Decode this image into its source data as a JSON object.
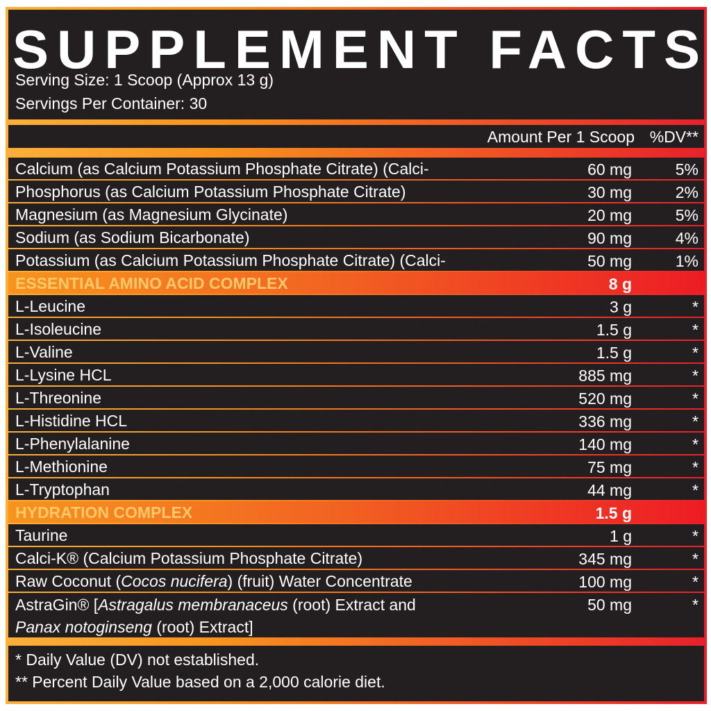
{
  "header": {
    "title": "SUPPLEMENT FACTS",
    "serving_size": "Serving Size: 1 Scoop (Approx 13 g)",
    "servings_per_container": "Servings Per Container: 30"
  },
  "columns": {
    "amount": "Amount Per 1 Scoop",
    "dv": "%DV**"
  },
  "rows": [
    {
      "name": [
        {
          "text": "Calcium (as Calcium Potassium Phosphate Citrate) (Calci-K®)"
        }
      ],
      "amount": "60 mg",
      "dv": "5%"
    },
    {
      "name": [
        {
          "text": "Phosphorus (as Calcium Potassium Phosphate Citrate) (Calci-K®)"
        }
      ],
      "amount": "30 mg",
      "dv": "2%"
    },
    {
      "name": [
        {
          "text": "Magnesium (as Magnesium Glycinate)"
        }
      ],
      "amount": "20 mg",
      "dv": "5%"
    },
    {
      "name": [
        {
          "text": "Sodium (as Sodium Bicarbonate)"
        }
      ],
      "amount": "90 mg",
      "dv": "4%"
    },
    {
      "name": [
        {
          "text": "Potassium (as Calcium Potassium Phosphate Citrate) (Calci-K®)"
        }
      ],
      "amount": "50 mg",
      "dv": "1%"
    },
    {
      "section": true,
      "name": [
        {
          "text": "ESSENTIAL AMINO ACID COMPLEX"
        }
      ],
      "amount": "8 g"
    },
    {
      "name": [
        {
          "text": "L-Leucine"
        }
      ],
      "amount": "3 g",
      "dv": "*"
    },
    {
      "name": [
        {
          "text": "L-Isoleucine"
        }
      ],
      "amount": "1.5 g",
      "dv": "*"
    },
    {
      "name": [
        {
          "text": "L-Valine"
        }
      ],
      "amount": "1.5 g",
      "dv": "*"
    },
    {
      "name": [
        {
          "text": "L-Lysine HCL"
        }
      ],
      "amount": "885 mg",
      "dv": "*"
    },
    {
      "name": [
        {
          "text": "L-Threonine"
        }
      ],
      "amount": "520 mg",
      "dv": "*"
    },
    {
      "name": [
        {
          "text": "L-Histidine HCL"
        }
      ],
      "amount": "336 mg",
      "dv": "*"
    },
    {
      "name": [
        {
          "text": "L-Phenylalanine"
        }
      ],
      "amount": "140 mg",
      "dv": "*"
    },
    {
      "name": [
        {
          "text": "L-Methionine"
        }
      ],
      "amount": "75 mg",
      "dv": "*"
    },
    {
      "name": [
        {
          "text": "L-Tryptophan"
        }
      ],
      "amount": "44 mg",
      "dv": "*"
    },
    {
      "section": true,
      "name": [
        {
          "text": "HYDRATION COMPLEX"
        }
      ],
      "amount": "1.5 g"
    },
    {
      "name": [
        {
          "text": "Taurine"
        }
      ],
      "amount": "1 g",
      "dv": "*"
    },
    {
      "name": [
        {
          "text": "Calci-K® (Calcium Potassium Phosphate Citrate)"
        }
      ],
      "amount": "345 mg",
      "dv": "*"
    },
    {
      "name": [
        {
          "text": "Raw Coconut ("
        },
        {
          "text": "Cocos nucifera",
          "italic": true
        },
        {
          "text": ") (fruit) Water Concentrate"
        }
      ],
      "amount": "100 mg",
      "dv": "*"
    },
    {
      "name": [
        {
          "text": "AstraGin® ["
        },
        {
          "text": "Astragalus membranaceus",
          "italic": true
        },
        {
          "text": " (root) Extract and "
        },
        {
          "text": "Panax notoginseng",
          "italic": true
        },
        {
          "text": " (root) Extract]"
        }
      ],
      "amount": "50 mg",
      "dv": "*"
    }
  ],
  "footnotes": [
    "* Daily Value (DV) not established.",
    "** Percent Daily Value based on a 2,000 calorie diet."
  ]
}
